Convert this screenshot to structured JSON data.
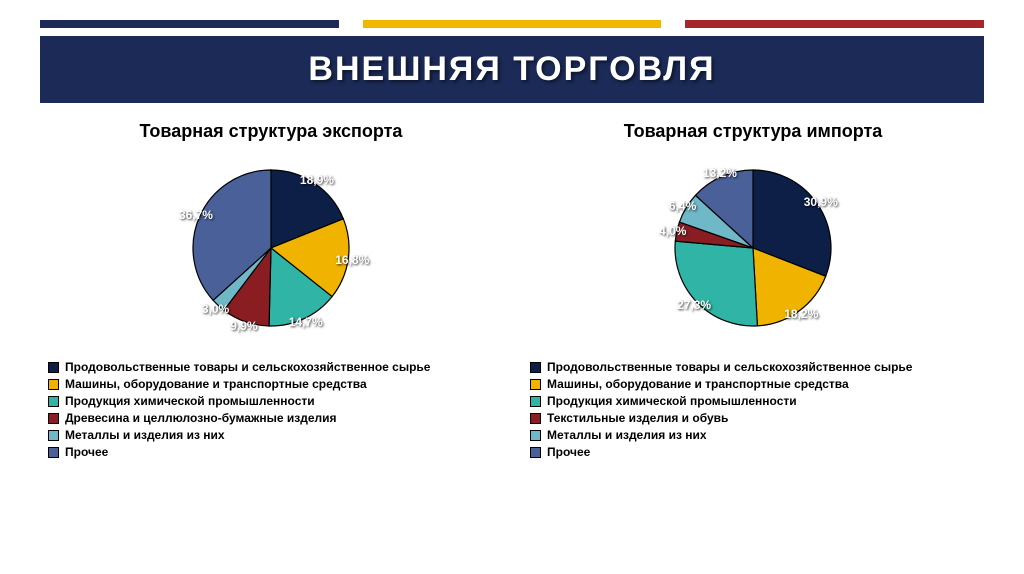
{
  "top_bars": {
    "colors": [
      "#1b2a57",
      "#f2b800",
      "#a5272b"
    ]
  },
  "title": {
    "text": "ВНЕШНЯЯ ТОРГОВЛЯ",
    "background": "#1b2a57",
    "color": "#ffffff"
  },
  "charts": [
    {
      "title": "Товарная структура экспорта",
      "slices": [
        {
          "label": "Продовольственные товары и сельскохозяйственное сырье",
          "value": 18.9,
          "color": "#0e1f47",
          "display": "18,9%"
        },
        {
          "label": "Машины, оборудование и транспортные средства",
          "value": 16.8,
          "color": "#f0b400",
          "display": "16,8%"
        },
        {
          "label": "Продукция химической промышленности",
          "value": 14.7,
          "color": "#2fb4a6",
          "display": "14,7%"
        },
        {
          "label": "Древесина и целлюлозно-бумажные изделия",
          "value": 9.9,
          "color": "#8a1d22",
          "display": "9,9%"
        },
        {
          "label": "Металлы и изделия из них",
          "value": 3.0,
          "color": "#6fb8c8",
          "display": "3,0%"
        },
        {
          "label": "Прочее",
          "value": 36.7,
          "color": "#4a6099",
          "display": "36,7%"
        }
      ]
    },
    {
      "title": "Товарная структура импорта",
      "slices": [
        {
          "label": "Продовольственные товары и сельскохозяйственное сырье",
          "value": 30.9,
          "color": "#0e1f47",
          "display": "30,9%"
        },
        {
          "label": "Машины, оборудование и транспортные средства",
          "value": 18.2,
          "color": "#f0b400",
          "display": "18,2%"
        },
        {
          "label": "Продукция химической промышленности",
          "value": 27.3,
          "color": "#2fb4a6",
          "display": "27,3%"
        },
        {
          "label": "Текстильные изделия и обувь",
          "value": 4.0,
          "color": "#8a1d22",
          "display": "4,0%"
        },
        {
          "label": "Металлы и изделия из них",
          "value": 6.4,
          "color": "#6fb8c8",
          "display": "6,4%"
        },
        {
          "label": "Прочее",
          "value": 13.2,
          "color": "#4a6099",
          "display": "13,2%"
        }
      ]
    }
  ],
  "pie_style": {
    "radius": 78,
    "stroke": "#000000",
    "stroke_width": 1.2,
    "label_radius_factor": 0.95,
    "start_angle_deg": -90
  }
}
